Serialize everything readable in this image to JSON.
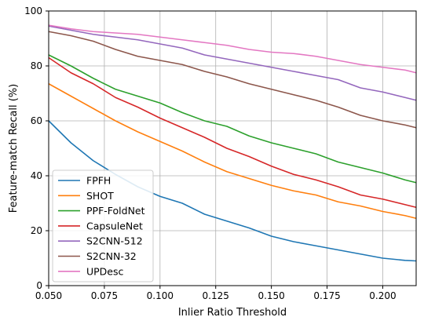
{
  "chart_data": {
    "type": "line",
    "title": "",
    "xlabel": "Inlier Ratio Threshold",
    "ylabel": "Feature-match Recall (%)",
    "xlim": [
      0.05,
      0.215
    ],
    "ylim": [
      0,
      100
    ],
    "x_ticks": [
      0.05,
      0.075,
      0.1,
      0.125,
      0.15,
      0.175,
      0.2
    ],
    "x_tick_labels": [
      "0.050",
      "0.075",
      "0.100",
      "0.125",
      "0.150",
      "0.175",
      "0.200"
    ],
    "y_ticks": [
      0,
      20,
      40,
      60,
      80,
      100
    ],
    "y_tick_labels": [
      "0",
      "20",
      "40",
      "60",
      "80",
      "100"
    ],
    "grid": true,
    "legend_position": "lower-left",
    "x": [
      0.05,
      0.06,
      0.07,
      0.08,
      0.09,
      0.1,
      0.11,
      0.12,
      0.13,
      0.14,
      0.15,
      0.16,
      0.17,
      0.18,
      0.19,
      0.2,
      0.21,
      0.215
    ],
    "series": [
      {
        "name": "FPFH",
        "color": "#1f77b4",
        "values": [
          60,
          52,
          45.5,
          40.5,
          36,
          32.5,
          30,
          26,
          23.5,
          21,
          18,
          16,
          14.5,
          13,
          11.5,
          10,
          9.2,
          9
        ]
      },
      {
        "name": "SHOT",
        "color": "#ff7f0e",
        "values": [
          73.5,
          69,
          64.5,
          60,
          56,
          52.5,
          49,
          45,
          41.5,
          39,
          36.5,
          34.5,
          33,
          30.5,
          29,
          27,
          25.5,
          24.5
        ]
      },
      {
        "name": "PPF-FoldNet",
        "color": "#2ca02c",
        "values": [
          84,
          80,
          75.5,
          71.5,
          69,
          66.5,
          63,
          60,
          58,
          54.5,
          52,
          50,
          48,
          45,
          43,
          41,
          38.5,
          37.5
        ]
      },
      {
        "name": "CapsuleNet",
        "color": "#d62728",
        "values": [
          83,
          77.5,
          73.5,
          68.5,
          65,
          61,
          57.5,
          54,
          50,
          47,
          43.5,
          40.5,
          38.5,
          36,
          33,
          31.5,
          29.5,
          28.5
        ]
      },
      {
        "name": "S2CNN-512",
        "color": "#9467bd",
        "values": [
          94.5,
          93,
          91.5,
          90.5,
          89.5,
          88,
          86.5,
          84,
          82.5,
          81,
          79.5,
          78,
          76.5,
          75,
          72,
          70.5,
          68.5,
          67.5
        ]
      },
      {
        "name": "S2CNN-32",
        "color": "#8c564b",
        "values": [
          92.5,
          91,
          89,
          86,
          83.5,
          82,
          80.5,
          78,
          76,
          73.5,
          71.5,
          69.5,
          67.5,
          65,
          62,
          60,
          58.5,
          57.5
        ]
      },
      {
        "name": "UPDesc",
        "color": "#e377c2",
        "values": [
          94.8,
          93.5,
          92.5,
          92,
          91.5,
          90.5,
          89.5,
          88.5,
          87.5,
          86,
          85,
          84.5,
          83.5,
          82,
          80.5,
          79.5,
          78.5,
          77.5
        ]
      }
    ]
  }
}
